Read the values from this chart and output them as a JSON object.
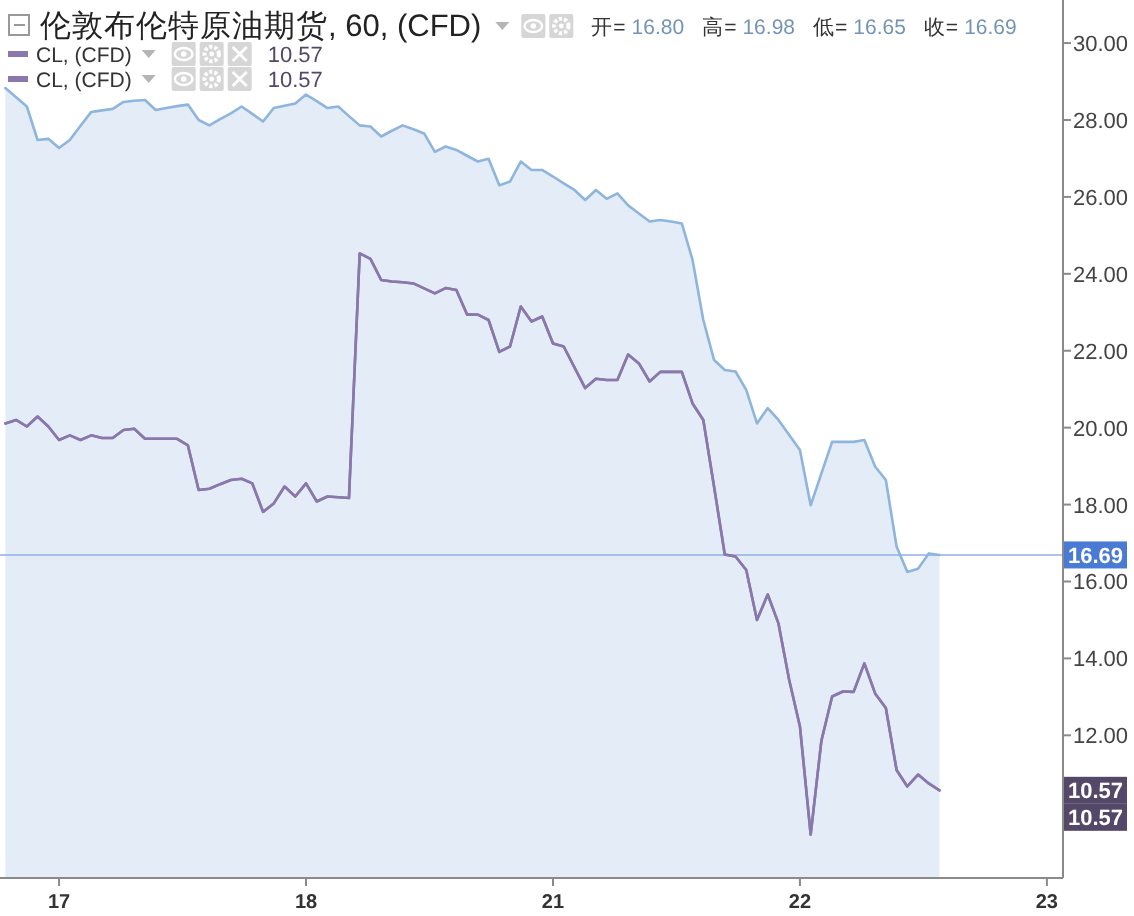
{
  "chart_data": {
    "type": "line",
    "title": "伦敦布伦特原油期货, 60, (CFD)",
    "subtitle": "开= 16.80 高= 16.98 低= 16.65 收= 16.69",
    "annotations": [
      {
        "text": "10.57",
        "y": 10.57
      },
      "10.57"
    ],
    "categories": [
      null,
      null,
      null,
      null,
      null,
      "17",
      null,
      null,
      null,
      null,
      null,
      null,
      null,
      null,
      null,
      null,
      null,
      null,
      null,
      null,
      null,
      null,
      null,
      null,
      null,
      null,
      null,
      null,
      "18",
      null,
      null,
      null,
      null,
      null,
      null,
      null,
      null,
      null,
      null,
      null,
      null,
      null,
      null,
      null,
      null,
      null,
      null,
      null,
      null,
      null,
      null,
      "21",
      null,
      null,
      null,
      null,
      null,
      null,
      null,
      null,
      null,
      null,
      null,
      null,
      null,
      null,
      null,
      null,
      null,
      null,
      null,
      null,
      null,
      null,
      "22",
      null,
      null,
      null,
      null,
      null,
      null,
      null,
      null,
      null,
      null,
      null,
      null,
      null,
      null,
      null,
      null,
      null,
      null,
      null,
      null,
      null,
      null,
      "23",
      null
    ],
    "series": [
      {
        "type": "area",
        "color": "#8db5dd",
        "values": [
          28.83,
          28.59,
          28.35,
          27.48,
          27.51,
          27.27,
          27.48,
          27.85,
          28.21,
          28.25,
          28.29,
          28.47,
          28.5,
          28.52,
          28.26,
          28.31,
          28.36,
          28.4,
          28.0,
          27.86,
          28.02,
          28.17,
          28.35,
          28.16,
          27.96,
          28.31,
          28.37,
          28.43,
          28.66,
          28.49,
          28.31,
          28.35,
          28.1,
          27.86,
          27.83,
          27.57,
          27.72,
          27.86,
          27.76,
          27.65,
          27.17,
          27.31,
          27.22,
          27.07,
          26.92,
          26.99,
          26.3,
          26.4,
          26.92,
          26.7,
          26.7,
          26.53,
          26.35,
          26.18,
          25.92,
          26.18,
          25.95,
          26.09,
          25.78,
          25.57,
          25.36,
          25.4,
          25.36,
          25.31,
          24.36,
          22.8,
          21.76,
          21.5,
          21.46,
          20.98,
          20.11,
          20.51,
          20.2,
          19.81,
          19.42,
          17.98,
          18.81,
          19.63,
          19.63,
          19.63,
          19.68,
          18.99,
          18.64,
          16.91,
          16.25,
          16.33,
          16.73,
          16.69,
          null,
          null,
          null,
          null,
          null,
          null,
          null,
          null,
          null,
          null,
          null
        ]
      },
      {
        "name": "CL, (CFD)",
        "color": "#8a78ad",
        "values": [
          20.11,
          20.2,
          20.03,
          20.29,
          20.03,
          19.68,
          19.8,
          19.68,
          19.8,
          19.73,
          19.73,
          19.94,
          19.97,
          19.71,
          19.71,
          19.71,
          19.71,
          19.54,
          18.38,
          18.41,
          18.53,
          18.64,
          18.67,
          18.55,
          17.81,
          18.03,
          18.47,
          18.21,
          18.55,
          18.08,
          18.21,
          18.19,
          18.17,
          24.53,
          24.39,
          23.84,
          23.8,
          23.78,
          23.75,
          23.62,
          23.49,
          23.63,
          23.58,
          22.94,
          22.94,
          22.8,
          21.97,
          22.11,
          23.15,
          22.76,
          22.89,
          22.19,
          22.11,
          21.57,
          21.03,
          21.27,
          21.24,
          21.24,
          21.9,
          21.67,
          21.2,
          21.45,
          21.45,
          21.45,
          20.63,
          20.2,
          18.47,
          16.7,
          16.65,
          16.3,
          15.0,
          15.66,
          14.91,
          13.44,
          12.23,
          9.42,
          11.86,
          13.01,
          13.14,
          13.13,
          13.87,
          13.09,
          12.71,
          11.1,
          10.67,
          10.98,
          10.75,
          10.57,
          null,
          null,
          null,
          null,
          null,
          null,
          null,
          null,
          null,
          null,
          null
        ]
      },
      {
        "name": "CL, (CFD)",
        "color": "#8a78ad",
        "values": [
          20.11,
          20.2,
          20.03,
          20.29,
          20.03,
          19.68,
          19.8,
          19.68,
          19.8,
          19.73,
          19.73,
          19.94,
          19.97,
          19.71,
          19.71,
          19.71,
          19.71,
          19.54,
          18.38,
          18.41,
          18.53,
          18.64,
          18.67,
          18.55,
          17.81,
          18.03,
          18.47,
          18.21,
          18.55,
          18.08,
          18.21,
          18.19,
          18.17,
          24.53,
          24.39,
          23.84,
          23.8,
          23.78,
          23.75,
          23.62,
          23.49,
          23.63,
          23.58,
          22.94,
          22.94,
          22.8,
          21.97,
          22.11,
          23.15,
          22.76,
          22.89,
          22.19,
          22.11,
          21.57,
          21.03,
          21.27,
          21.24,
          21.24,
          21.9,
          21.67,
          21.2,
          21.45,
          21.45,
          21.45,
          20.63,
          20.2,
          18.47,
          16.7,
          16.65,
          16.3,
          15.0,
          15.66,
          14.91,
          13.44,
          12.23,
          9.42,
          11.86,
          13.01,
          13.14,
          13.13,
          13.87,
          13.09,
          12.71,
          11.1,
          10.67,
          10.98,
          10.75,
          10.57,
          null,
          null,
          null,
          null,
          null,
          null,
          null,
          null,
          null,
          null,
          null
        ]
      }
    ],
    "ylim": [
      8.29,
      31.12
    ],
    "yticks": [
      {
        "value": 12,
        "label": "12.00"
      },
      {
        "value": 14,
        "label": "14.00"
      },
      {
        "value": 16,
        "label": "16.00"
      },
      {
        "value": 18,
        "label": "18.00"
      },
      {
        "value": 20,
        "label": "20.00"
      },
      {
        "value": 22,
        "label": "22.00"
      },
      {
        "value": 24,
        "label": "24.00"
      },
      {
        "value": 26,
        "label": "26.00"
      },
      {
        "value": 28,
        "label": "28.00"
      },
      {
        "value": 30,
        "label": "30.00"
      }
    ],
    "ref_lines": [
      {
        "axis": "y",
        "value": 16.69,
        "label": "16.69",
        "color": "#4a7bd4"
      }
    ],
    "legend": "top left"
  }
}
